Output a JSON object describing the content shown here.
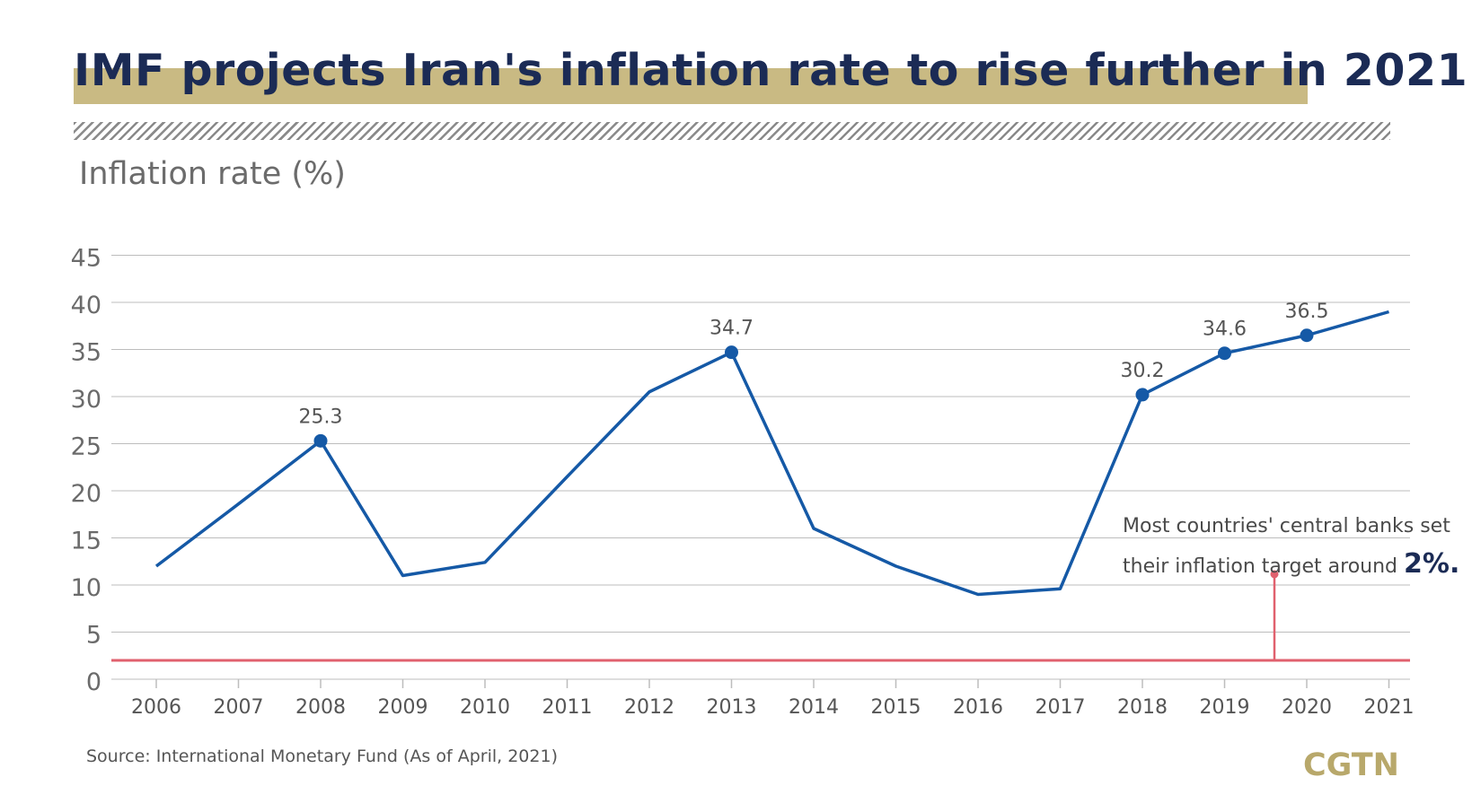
{
  "header": {
    "title": "IMF projects Iran's inflation rate to rise further in 2021",
    "y_axis_label": "Inflation rate (%)"
  },
  "annotation": {
    "line1": "Most countries' central banks set",
    "line2_prefix": "their inflation target around",
    "line2_value": "2%."
  },
  "footer": {
    "source": "Source: International Monetary Fund (As of April, 2021)",
    "logo": "CGTN"
  },
  "colors": {
    "line": "#1559a6",
    "target": "#e0616e",
    "grid": "#bdbdbd",
    "title_band": "#c9ba83",
    "title_text": "#1b2b55"
  },
  "chart_data": {
    "type": "line",
    "x": [
      "2006",
      "2007",
      "2008",
      "2009",
      "2010",
      "2011",
      "2012",
      "2013",
      "2014",
      "2015",
      "2016",
      "2017",
      "2018",
      "2019",
      "2020",
      "2021"
    ],
    "values": [
      12,
      18.6,
      25.3,
      11,
      12.4,
      21.5,
      30.5,
      34.7,
      16,
      12,
      9,
      9.6,
      30.2,
      34.6,
      36.5,
      39
    ],
    "data_labels": [
      {
        "year": "2008",
        "label": "25.3"
      },
      {
        "year": "2013",
        "label": "34.7"
      },
      {
        "year": "2018",
        "label": "30.2"
      },
      {
        "year": "2019",
        "label": "34.6"
      },
      {
        "year": "2020",
        "label": "36.5"
      }
    ],
    "target_value": 2,
    "ylim": [
      0,
      45
    ],
    "yticks": [
      "0",
      "5",
      "10",
      "15",
      "20",
      "25",
      "30",
      "35",
      "40",
      "45"
    ],
    "ytick_values": [
      0,
      5,
      10,
      15,
      20,
      25,
      30,
      35,
      40,
      45
    ],
    "grid": true
  }
}
